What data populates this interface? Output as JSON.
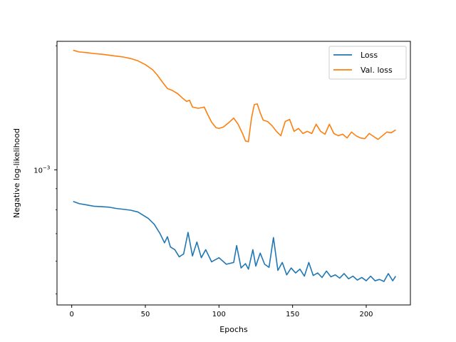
{
  "chart_data": {
    "type": "line",
    "title": "",
    "xlabel": "Epochs",
    "ylabel": "Negative log-likelihood",
    "yscale": "log",
    "xlim": [
      -10,
      230
    ],
    "ylim": [
      0.00047,
      0.00205
    ],
    "xticks": [
      0,
      50,
      100,
      150,
      200
    ],
    "xtick_labels": [
      "0",
      "50",
      "100",
      "150",
      "200"
    ],
    "yticks": [
      0.001
    ],
    "ytick_labels": [
      "10",
      "−3"
    ],
    "grid": false,
    "legend": "top-right",
    "series": [
      {
        "name": "Loss",
        "color": "#1f77b4",
        "x": [
          1,
          5,
          10,
          15,
          20,
          25,
          30,
          35,
          40,
          45,
          48,
          52,
          56,
          60,
          63,
          65,
          67,
          70,
          73,
          76,
          79,
          82,
          85,
          88,
          91,
          95,
          100,
          105,
          110,
          112,
          115,
          118,
          120,
          123,
          125,
          128,
          131,
          134,
          137,
          140,
          143,
          146,
          149,
          152,
          155,
          158,
          161,
          164,
          167,
          170,
          173,
          176,
          179,
          182,
          185,
          188,
          191,
          194,
          197,
          200,
          203,
          206,
          209,
          212,
          215,
          218,
          220
        ],
        "y": [
          0.000838,
          0.000828,
          0.000822,
          0.000816,
          0.000814,
          0.000812,
          0.000806,
          0.000802,
          0.000798,
          0.00079,
          0.000778,
          0.000762,
          0.000738,
          0.0007,
          0.000665,
          0.000688,
          0.00065,
          0.00064,
          0.000615,
          0.000625,
          0.000705,
          0.000618,
          0.000668,
          0.000612,
          0.00064,
          0.000598,
          0.000612,
          0.00059,
          0.000596,
          0.000655,
          0.000578,
          0.000592,
          0.000574,
          0.00064,
          0.000584,
          0.000628,
          0.00059,
          0.00058,
          0.000685,
          0.00057,
          0.000596,
          0.000556,
          0.000578,
          0.000562,
          0.000574,
          0.000552,
          0.000596,
          0.000554,
          0.000562,
          0.000548,
          0.000568,
          0.00055,
          0.000556,
          0.000546,
          0.00056,
          0.000544,
          0.000552,
          0.00054,
          0.000548,
          0.000538,
          0.000552,
          0.000538,
          0.000542,
          0.000536,
          0.00056,
          0.000538,
          0.000552
        ]
      },
      {
        "name": "Val. loss",
        "color": "#ff7f0e",
        "x": [
          1,
          5,
          10,
          15,
          20,
          25,
          30,
          35,
          40,
          45,
          50,
          55,
          58,
          62,
          65,
          68,
          72,
          75,
          78,
          80,
          82,
          86,
          90,
          92,
          95,
          98,
          100,
          103,
          107,
          110,
          113,
          116,
          118,
          120,
          122,
          124,
          126,
          128,
          130,
          133,
          136,
          139,
          142,
          145,
          148,
          151,
          154,
          157,
          160,
          163,
          166,
          169,
          172,
          175,
          178,
          181,
          184,
          187,
          190,
          193,
          196,
          199,
          202,
          205,
          208,
          211,
          214,
          217,
          220
        ],
        "y": [
          0.00195,
          0.001932,
          0.001925,
          0.001915,
          0.001908,
          0.001898,
          0.001888,
          0.001878,
          0.001862,
          0.001838,
          0.0018,
          0.001748,
          0.0017,
          0.001625,
          0.001575,
          0.00156,
          0.00153,
          0.001495,
          0.001465,
          0.001475,
          0.00142,
          0.00141,
          0.00142,
          0.00137,
          0.001305,
          0.001265,
          0.00126,
          0.00127,
          0.001305,
          0.001335,
          0.00129,
          0.001225,
          0.001175,
          0.00117,
          0.00133,
          0.00144,
          0.001445,
          0.001375,
          0.00132,
          0.00131,
          0.00128,
          0.00124,
          0.00121,
          0.00131,
          0.001325,
          0.00124,
          0.00126,
          0.001225,
          0.00124,
          0.001225,
          0.00129,
          0.00124,
          0.00122,
          0.00129,
          0.001225,
          0.00121,
          0.00122,
          0.001195,
          0.001235,
          0.00121,
          0.001195,
          0.00119,
          0.001225,
          0.001205,
          0.001185,
          0.00121,
          0.001235,
          0.00123,
          0.00125
        ]
      }
    ]
  }
}
